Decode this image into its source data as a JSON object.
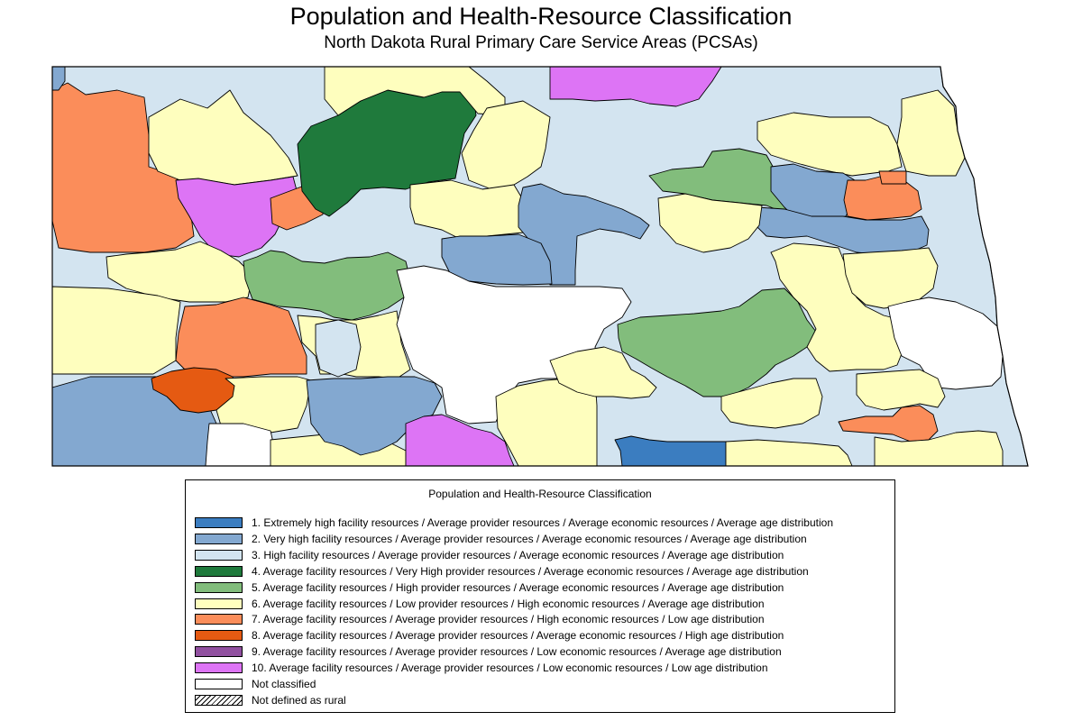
{
  "map": {
    "title": "Population and Health-Resource Classification",
    "subtitle": "North Dakota Rural Primary Care Service Areas (PCSAs)",
    "region": "North Dakota",
    "theme": "Rural Primary Care Service Areas (PCSAs) colored by population and health-resource classification"
  },
  "legend": {
    "title": "Population and Health-Resource Classification",
    "items": [
      {
        "label": "1. Extremely high facility resources / Average provider resources / Average economic resources / Average age distribution",
        "color": "#3b7dc0",
        "pattern": "solid"
      },
      {
        "label": "2. Very high facility resources / Average provider resources / Average economic resources / Average age distribution",
        "color": "#83a8d0",
        "pattern": "solid"
      },
      {
        "label": "3. High facility resources / Average provider resources / Average economic resources / Average age distribution",
        "color": "#d3e4f0",
        "pattern": "solid"
      },
      {
        "label": "4. Average facility resources / Very High provider resources / Average economic resources / Average age distribution",
        "color": "#1f7a3c",
        "pattern": "solid"
      },
      {
        "label": "5. Average facility resources / High provider resources / Average economic resources / Average age distribution",
        "color": "#82bd7c",
        "pattern": "solid"
      },
      {
        "label": "6. Average facility resources / Low provider resources / High economic resources / Average age distribution",
        "color": "#fefebe",
        "pattern": "solid"
      },
      {
        "label": "7. Average facility resources / Average provider resources / High economic resources / Low age distribution",
        "color": "#fb8d5a",
        "pattern": "solid"
      },
      {
        "label": "8. Average facility resources / Average provider resources / Average economic resources / High age distribution",
        "color": "#e55a12",
        "pattern": "solid"
      },
      {
        "label": "9. Average facility resources / Average provider resources / Low economic resources / Average age distribution",
        "color": "#9150a0",
        "pattern": "solid"
      },
      {
        "label": "10. Average facility resources / Average provider resources / Low economic resources / Low age distribution",
        "color": "#dd74f5",
        "pattern": "solid"
      },
      {
        "label": "Not classified",
        "color": "#ffffff",
        "pattern": "solid"
      },
      {
        "label": "Not defined as rural",
        "color": "#ffffff",
        "pattern": "hatch"
      }
    ]
  }
}
